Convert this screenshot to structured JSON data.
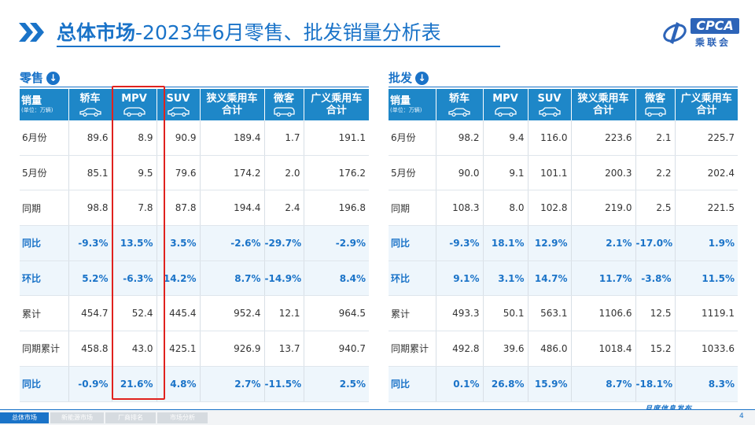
{
  "header": {
    "title_bold": "总体市场",
    "title_rest": "-2023年6月零售、批发销量分析表",
    "logo_en": "CPCA",
    "logo_cn": "乘联会"
  },
  "retail": {
    "title": "零售",
    "columns": [
      "销量",
      "轿车",
      "MPV",
      "SUV",
      "狭义乘用车合计",
      "微客",
      "广义乘用车合计"
    ],
    "unit": "(单位：万辆)",
    "rows": [
      {
        "label": "6月份",
        "values": [
          "89.6",
          "8.9",
          "90.9",
          "189.4",
          "1.7",
          "191.1"
        ],
        "pct": false
      },
      {
        "label": "5月份",
        "values": [
          "85.1",
          "9.5",
          "79.6",
          "174.2",
          "2.0",
          "176.2"
        ],
        "pct": false
      },
      {
        "label": "同期",
        "values": [
          "98.8",
          "7.8",
          "87.8",
          "194.4",
          "2.4",
          "196.8"
        ],
        "pct": false
      },
      {
        "label": "同比",
        "values": [
          "-9.3%",
          "13.5%",
          "3.5%",
          "-2.6%",
          "-29.7%",
          "-2.9%"
        ],
        "pct": true
      },
      {
        "label": "环比",
        "values": [
          "5.2%",
          "-6.3%",
          "14.2%",
          "8.7%",
          "-14.9%",
          "8.4%"
        ],
        "pct": true
      },
      {
        "label": "累计",
        "values": [
          "454.7",
          "52.4",
          "445.4",
          "952.4",
          "12.1",
          "964.5"
        ],
        "pct": false
      },
      {
        "label": "同期累计",
        "values": [
          "458.8",
          "43.0",
          "425.1",
          "926.9",
          "13.7",
          "940.7"
        ],
        "pct": false
      },
      {
        "label": "同比",
        "values": [
          "-0.9%",
          "21.6%",
          "4.8%",
          "2.7%",
          "-11.5%",
          "2.5%"
        ],
        "pct": true
      }
    ]
  },
  "wholesale": {
    "title": "批发",
    "columns": [
      "销量",
      "轿车",
      "MPV",
      "SUV",
      "狭义乘用车合计",
      "微客",
      "广义乘用车合计"
    ],
    "unit": "(单位：万辆)",
    "rows": [
      {
        "label": "6月份",
        "values": [
          "98.2",
          "9.4",
          "116.0",
          "223.6",
          "2.1",
          "225.7"
        ],
        "pct": false
      },
      {
        "label": "5月份",
        "values": [
          "90.0",
          "9.1",
          "101.1",
          "200.3",
          "2.2",
          "202.4"
        ],
        "pct": false
      },
      {
        "label": "同期",
        "values": [
          "108.3",
          "8.0",
          "102.8",
          "219.0",
          "2.5",
          "221.5"
        ],
        "pct": false
      },
      {
        "label": "同比",
        "values": [
          "-9.3%",
          "18.1%",
          "12.9%",
          "2.1%",
          "-17.0%",
          "1.9%"
        ],
        "pct": true
      },
      {
        "label": "环比",
        "values": [
          "9.1%",
          "3.1%",
          "14.7%",
          "11.7%",
          "-3.8%",
          "11.5%"
        ],
        "pct": true
      },
      {
        "label": "累计",
        "values": [
          "493.3",
          "50.1",
          "563.1",
          "1106.6",
          "12.5",
          "1119.1"
        ],
        "pct": false
      },
      {
        "label": "同期累计",
        "values": [
          "492.8",
          "39.6",
          "486.0",
          "1018.4",
          "15.2",
          "1033.6"
        ],
        "pct": false
      },
      {
        "label": "同比",
        "values": [
          "0.1%",
          "26.8%",
          "15.9%",
          "8.7%",
          "-18.1%",
          "8.3%"
        ],
        "pct": true
      }
    ]
  },
  "footer": {
    "tabs": [
      "总体市场",
      "新能源市场",
      "厂商排名",
      "市场分析"
    ],
    "issue": "月度信息发布",
    "page": "4"
  },
  "colors": {
    "accent": "#1a73c8",
    "header_fill": "#1e87c8",
    "highlight": "#e0221e"
  }
}
